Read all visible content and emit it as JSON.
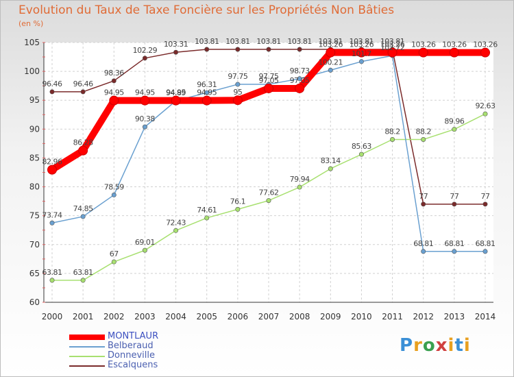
{
  "title": "Evolution du Taux de Taxe Foncière sur les Propriétés Non Bâties",
  "subtitle": "(en %)",
  "logo": "Proxiti",
  "chart_data": {
    "type": "line",
    "title": "Evolution du Taux de Taxe Foncière sur les Propriétés Non Bâties",
    "ylabel": "(en %)",
    "ylim": [
      60,
      105
    ],
    "yticks": [
      60,
      65,
      70,
      75,
      80,
      85,
      90,
      95,
      100,
      105
    ],
    "grid": true,
    "legend_position": "bottom-left",
    "x": [
      2000,
      2001,
      2002,
      2003,
      2004,
      2005,
      2006,
      2007,
      2008,
      2009,
      2010,
      2011,
      2012,
      2013,
      2014
    ],
    "series": [
      {
        "name": "MONTLAUR",
        "color": "#ff0000",
        "values": [
          82.96,
          86.28,
          94.95,
          94.95,
          94.95,
          94.95,
          95,
          97.05,
          97.05,
          103.26,
          103.26,
          103.26,
          103.26,
          103.26,
          103.26
        ],
        "labels": [
          "82.96",
          "86.28",
          "94.95",
          "94.95",
          "94.95",
          "94.95",
          "95",
          "97.05",
          "97.05",
          "103.26",
          "103.26",
          "103.26",
          "103.26",
          "103.26",
          "103.26"
        ]
      },
      {
        "name": "Belberaud",
        "color": "#6aa0d0",
        "values": [
          73.74,
          74.85,
          78.59,
          90.38,
          94.89,
          96.31,
          97.75,
          97.75,
          98.73,
          100.21,
          101.7,
          102.72,
          68.81,
          68.81,
          68.81
        ],
        "labels": [
          "73.74",
          "74.85",
          "78.59",
          "90.38",
          "94.89",
          "96.31",
          "97.75",
          "97.75",
          "98.73",
          "100.21",
          "101.7",
          "102.72",
          "68.81",
          "68.81",
          "68.81"
        ]
      },
      {
        "name": "Donneville",
        "color": "#a8e070",
        "values": [
          63.81,
          63.81,
          67,
          69.01,
          72.43,
          74.61,
          76.1,
          77.62,
          79.94,
          83.14,
          85.63,
          88.2,
          88.2,
          89.96,
          92.63
        ],
        "labels": [
          "63.81",
          "63.81",
          "67",
          "69.01",
          "72.43",
          "74.61",
          "76.1",
          "77.62",
          "79.94",
          "83.14",
          "85.63",
          "88.2",
          "88.2",
          "89.96",
          "92.63"
        ]
      },
      {
        "name": "Escalquens",
        "color": "#7a2a2a",
        "values": [
          96.46,
          96.46,
          98.36,
          102.29,
          103.31,
          103.81,
          103.81,
          103.81,
          103.81,
          103.81,
          103.81,
          103.81,
          77,
          77,
          77
        ],
        "labels": [
          "96.46",
          "96.46",
          "98.36",
          "102.29",
          "103.31",
          "103.81",
          "103.81",
          "103.81",
          "103.81",
          "103.81",
          "103.81",
          "103.81",
          "77",
          "77",
          "77"
        ]
      }
    ]
  }
}
